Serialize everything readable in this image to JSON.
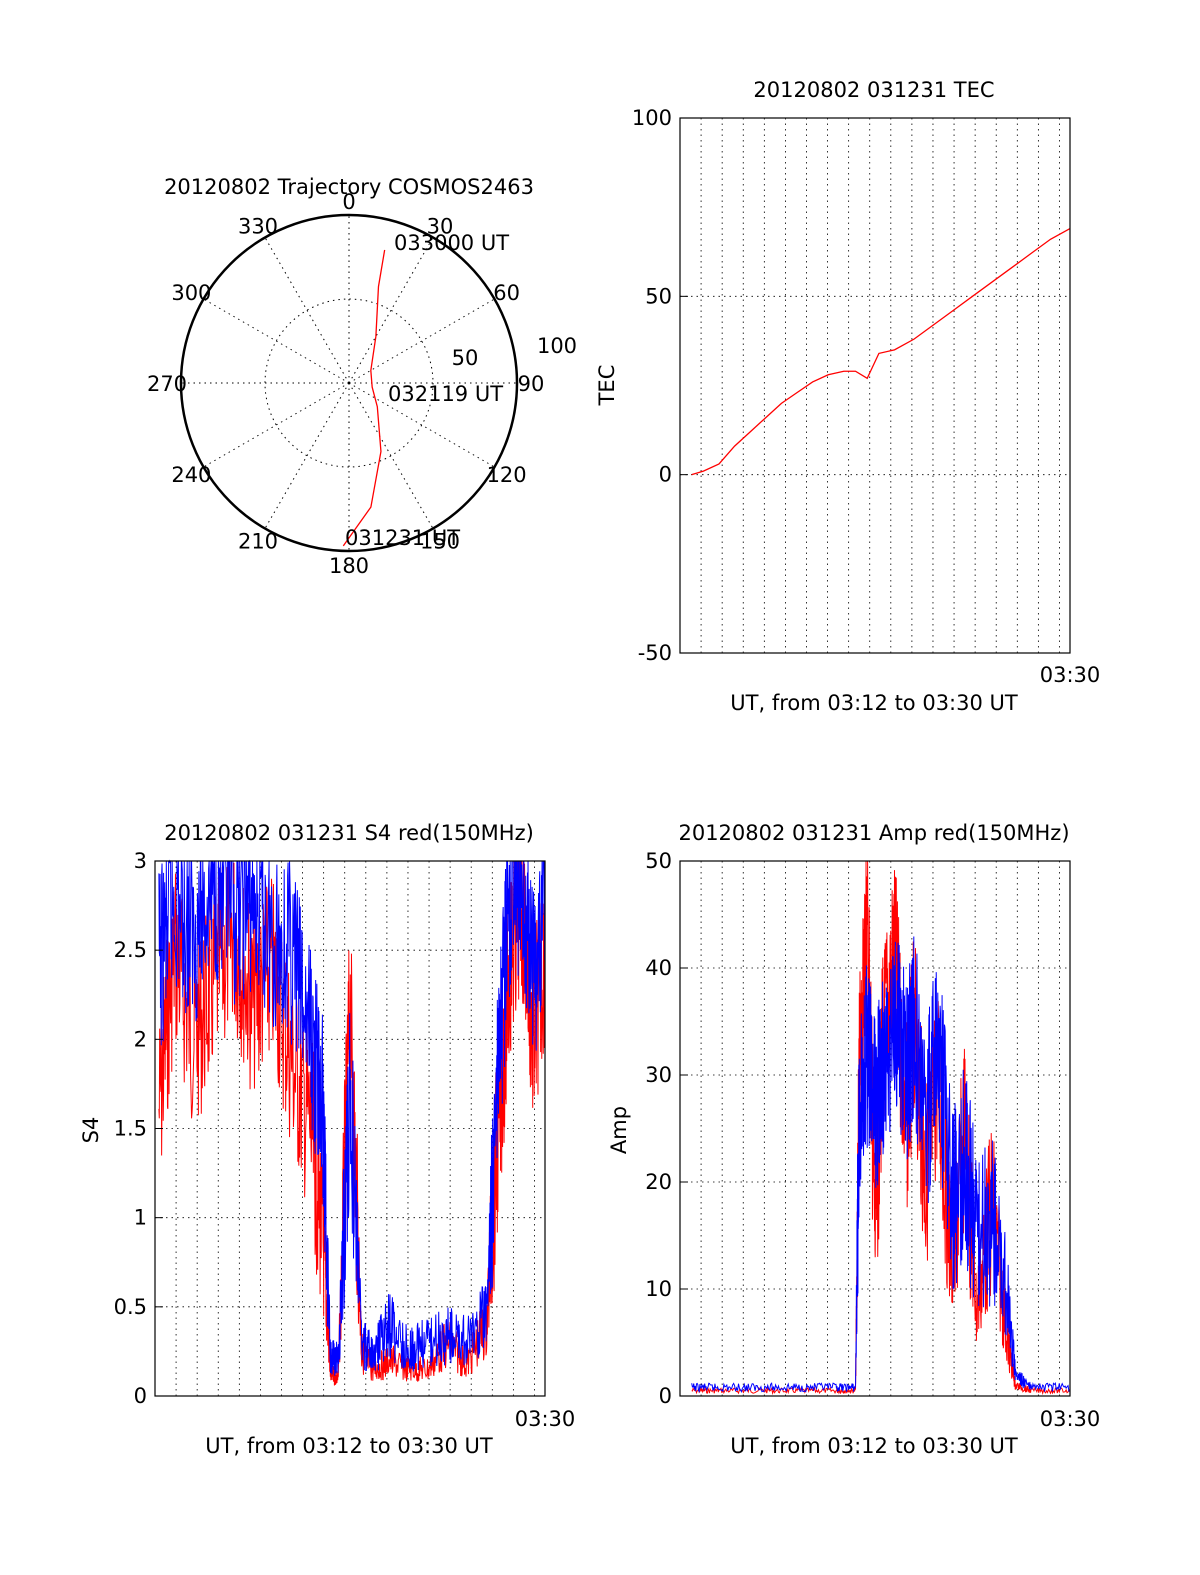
{
  "figure": {
    "background": "#ffffff"
  },
  "colors": {
    "red": "#ff0000",
    "blue": "#0000ff",
    "axis": "#000000",
    "grid": "#000000"
  },
  "chart_data": [
    {
      "type": "polar",
      "panel": "trajectory",
      "title": "20120802 Trajectory COSMOS2463",
      "azimuth_labels": [
        "0",
        "30",
        "60",
        "90",
        "120",
        "150",
        "180",
        "210",
        "240",
        "270",
        "300",
        "330"
      ],
      "elevation_labels": [
        "50",
        "100"
      ],
      "series": [
        {
          "color": "#ff0000",
          "points": [
            {
              "az": 182,
              "r": 0.97
            },
            {
              "az": 170,
              "r": 0.75
            },
            {
              "az": 155,
              "r": 0.45
            },
            {
              "az": 130,
              "r": 0.22
            },
            {
              "az": 100,
              "r": 0.14
            },
            {
              "az": 60,
              "r": 0.15
            },
            {
              "az": 30,
              "r": 0.32
            },
            {
              "az": 17,
              "r": 0.6
            },
            {
              "az": 15,
              "r": 0.82
            }
          ]
        }
      ],
      "annotations": [
        {
          "text": "033000 UT",
          "az": 15,
          "r": 0.82
        },
        {
          "text": "032119 UT",
          "az": 100,
          "r": 0.14
        },
        {
          "text": "031231 UT",
          "az": 182,
          "r": 0.97
        }
      ]
    },
    {
      "type": "line",
      "panel": "tec",
      "title": "20120802 031231 TEC",
      "xlabel": "UT, from 03:12 to 03:30 UT",
      "ylabel": "TEC",
      "xlim": [
        0,
        1
      ],
      "ylim": [
        -50,
        100
      ],
      "yticks": [
        -50,
        0,
        50,
        100
      ],
      "xtick_label": "03:30",
      "grid": true,
      "series": [
        {
          "color": "#ff0000",
          "x": [
            0.03,
            0.06,
            0.1,
            0.14,
            0.18,
            0.22,
            0.26,
            0.3,
            0.34,
            0.38,
            0.42,
            0.45,
            0.48,
            0.51,
            0.55,
            0.6,
            0.65,
            0.7,
            0.75,
            0.8,
            0.85,
            0.9,
            0.95,
            1.0
          ],
          "y": [
            0,
            1,
            3,
            8,
            12,
            16,
            20,
            23,
            26,
            28,
            29,
            29,
            27,
            34,
            35,
            38,
            42,
            46,
            50,
            54,
            58,
            62,
            66,
            69
          ]
        }
      ]
    },
    {
      "type": "line",
      "panel": "s4",
      "title": "20120802 031231 S4 red(150MHz)",
      "xlabel": "UT, from 03:12 to 03:30 UT",
      "ylabel": "S4",
      "xlim": [
        0,
        1
      ],
      "ylim": [
        0,
        3
      ],
      "yticks": [
        0,
        0.5,
        1,
        1.5,
        2,
        2.5,
        3
      ],
      "ytick_labels": [
        "0",
        "0.5",
        "1",
        "1.5",
        "2",
        "2.5",
        "3"
      ],
      "xtick_label": "03:30",
      "grid": true,
      "series": [
        {
          "color": "#ff0000",
          "x": [
            0.01,
            0.05,
            0.1,
            0.15,
            0.2,
            0.25,
            0.3,
            0.35,
            0.4,
            0.43,
            0.45,
            0.47,
            0.5,
            0.53,
            0.56,
            0.6,
            0.65,
            0.7,
            0.75,
            0.8,
            0.85,
            0.88,
            0.91,
            0.94,
            0.97,
            1.0
          ],
          "y": [
            1.6,
            2.5,
            2.0,
            2.3,
            2.6,
            2.2,
            2.4,
            1.9,
            1.5,
            0.9,
            0.12,
            0.1,
            2.2,
            0.25,
            0.14,
            0.2,
            0.15,
            0.15,
            0.3,
            0.18,
            0.4,
            1.5,
            2.4,
            2.8,
            2.0,
            2.5
          ]
        },
        {
          "color": "#0000ff",
          "x": [
            0.01,
            0.05,
            0.1,
            0.15,
            0.2,
            0.25,
            0.3,
            0.35,
            0.4,
            0.43,
            0.45,
            0.47,
            0.5,
            0.53,
            0.56,
            0.6,
            0.65,
            0.7,
            0.75,
            0.8,
            0.85,
            0.88,
            0.91,
            0.94,
            0.97,
            1.0
          ],
          "y": [
            2.4,
            2.8,
            2.6,
            2.9,
            2.7,
            2.8,
            2.6,
            2.5,
            2.0,
            1.6,
            0.22,
            0.2,
            1.7,
            0.3,
            0.22,
            0.4,
            0.25,
            0.3,
            0.35,
            0.3,
            0.45,
            1.8,
            2.8,
            2.9,
            2.4,
            2.7
          ]
        }
      ]
    },
    {
      "type": "line",
      "panel": "amp",
      "title": "20120802 031231 Amp red(150MHz)",
      "xlabel": "UT, from 03:12 to 03:30 UT",
      "ylabel": "Amp",
      "xlim": [
        0,
        1
      ],
      "ylim": [
        0,
        50
      ],
      "yticks": [
        0,
        10,
        20,
        30,
        40,
        50
      ],
      "xtick_label": "03:30",
      "grid": true,
      "series": [
        {
          "color": "#ff0000",
          "x": [
            0.03,
            0.1,
            0.2,
            0.3,
            0.4,
            0.45,
            0.46,
            0.48,
            0.5,
            0.52,
            0.55,
            0.58,
            0.6,
            0.63,
            0.66,
            0.7,
            0.73,
            0.76,
            0.8,
            0.84,
            0.86,
            0.9,
            1.0
          ],
          "y": [
            0.5,
            0.5,
            0.5,
            0.5,
            0.5,
            0.5,
            30,
            46,
            15,
            33,
            42,
            25,
            35,
            20,
            30,
            12,
            25,
            8,
            18,
            5,
            1,
            0.5,
            0.5
          ]
        },
        {
          "color": "#0000ff",
          "x": [
            0.03,
            0.1,
            0.2,
            0.3,
            0.4,
            0.45,
            0.46,
            0.48,
            0.5,
            0.52,
            0.55,
            0.58,
            0.6,
            0.63,
            0.66,
            0.7,
            0.73,
            0.76,
            0.8,
            0.84,
            0.86,
            0.9,
            1.0
          ],
          "y": [
            0.8,
            0.8,
            0.8,
            0.8,
            0.8,
            0.8,
            28,
            32,
            27,
            30,
            36,
            30,
            35,
            25,
            33,
            18,
            22,
            15,
            17,
            9,
            2,
            0.8,
            0.8
          ]
        }
      ]
    }
  ]
}
